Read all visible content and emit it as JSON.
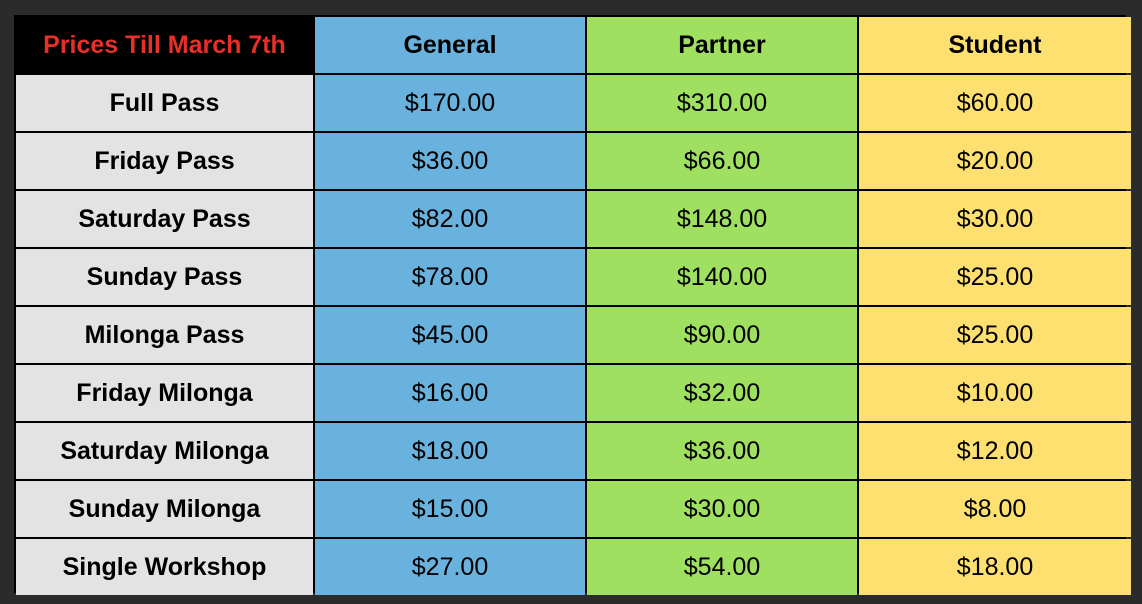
{
  "table": {
    "corner_label": "Prices Till March 7th",
    "columns": [
      "General",
      "Partner",
      "Student"
    ],
    "rows": [
      {
        "label": "Full Pass",
        "values": [
          "$170.00",
          "$310.00",
          "$60.00"
        ]
      },
      {
        "label": "Friday Pass",
        "values": [
          "$36.00",
          "$66.00",
          "$20.00"
        ]
      },
      {
        "label": "Saturday Pass",
        "values": [
          "$82.00",
          "$148.00",
          "$30.00"
        ]
      },
      {
        "label": "Sunday Pass",
        "values": [
          "$78.00",
          "$140.00",
          "$25.00"
        ]
      },
      {
        "label": "Milonga Pass",
        "values": [
          "$45.00",
          "$90.00",
          "$25.00"
        ]
      },
      {
        "label": "Friday Milonga",
        "values": [
          "$16.00",
          "$32.00",
          "$10.00"
        ]
      },
      {
        "label": "Saturday Milonga",
        "values": [
          "$18.00",
          "$36.00",
          "$12.00"
        ]
      },
      {
        "label": "Sunday Milonga",
        "values": [
          "$15.00",
          "$30.00",
          "$8.00"
        ]
      },
      {
        "label": "Single Workshop",
        "values": [
          "$27.00",
          "$54.00",
          "$18.00"
        ]
      }
    ]
  },
  "colors": {
    "corner_text": "#e8302a",
    "general": "#68b2dd",
    "partner": "#a0e060",
    "student": "#fde070",
    "row_label_bg": "#e3e3e3"
  }
}
